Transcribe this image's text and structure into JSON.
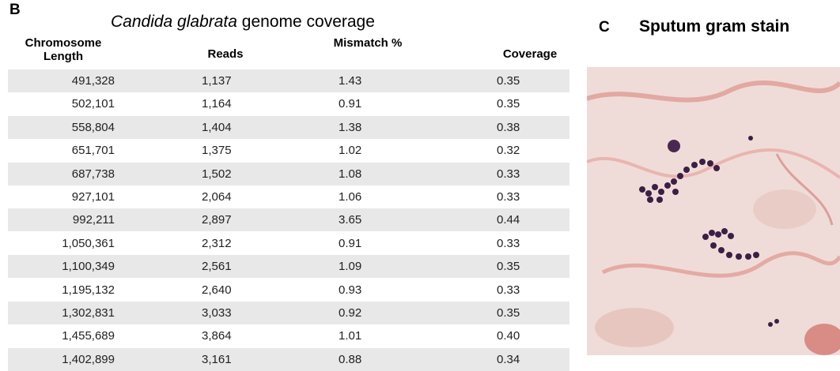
{
  "panel_b": {
    "label": "B",
    "title_italic": "Candida glabrata",
    "title_rest": "genome coverage",
    "table": {
      "header": [
        "Chromosome Length",
        "Reads",
        "Mismatch %",
        "Coverage"
      ],
      "rows": [
        [
          "491,328",
          "1,137",
          "1.43",
          "0.35"
        ],
        [
          "502,101",
          "1,164",
          "0.91",
          "0.35"
        ],
        [
          "558,804",
          "1,404",
          "1.38",
          "0.38"
        ],
        [
          "651,701",
          "1,375",
          "1.02",
          "0.32"
        ],
        [
          "687,738",
          "1,502",
          "1.08",
          "0.33"
        ],
        [
          "927,101",
          "2,064",
          "1.06",
          "0.33"
        ],
        [
          "992,211",
          "2,897",
          "3.65",
          "0.44"
        ],
        [
          "1,050,361",
          "2,312",
          "0.91",
          "0.33"
        ],
        [
          "1,100,349",
          "2,561",
          "1.09",
          "0.35"
        ],
        [
          "1,195,132",
          "2,640",
          "0.93",
          "0.33"
        ],
        [
          "1,302,831",
          "3,033",
          "0.92",
          "0.35"
        ],
        [
          "1,455,689",
          "3,864",
          "1.01",
          "0.40"
        ],
        [
          "1,402,899",
          "3,161",
          "0.88",
          "0.34"
        ]
      ]
    }
  },
  "panel_c": {
    "label": "C",
    "title": "Sputum gram stain"
  }
}
